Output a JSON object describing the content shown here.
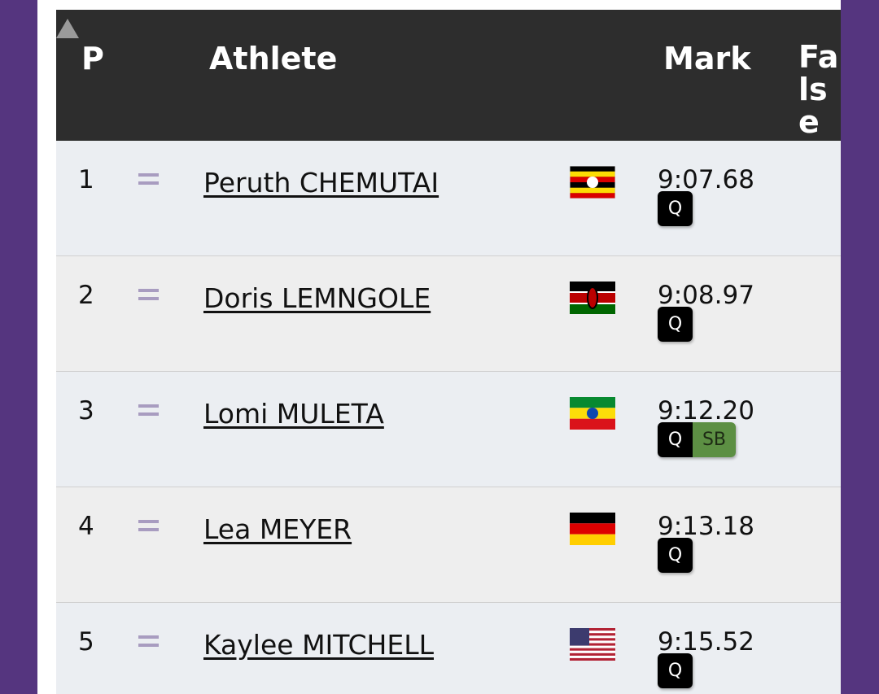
{
  "header": {
    "position": "P",
    "athlete": "Athlete",
    "mark": "Mark",
    "extra": "False Start"
  },
  "rows": [
    {
      "position": "1",
      "athlete": "Peruth CHEMUTAI",
      "mark": "9:07.68",
      "badges": [
        "Q"
      ]
    },
    {
      "position": "2",
      "athlete": "Doris LEMNGOLE",
      "mark": "9:08.97",
      "badges": [
        "Q"
      ]
    },
    {
      "position": "3",
      "athlete": "Lomi MULETA",
      "mark": "9:12.20",
      "badges": [
        "Q",
        "SB"
      ]
    },
    {
      "position": "4",
      "athlete": "Lea MEYER",
      "mark": "9:13.18",
      "badges": [
        "Q"
      ]
    },
    {
      "position": "5",
      "athlete": "Kaylee MITCHELL",
      "mark": "9:15.52",
      "badges": [
        "Q"
      ]
    }
  ]
}
